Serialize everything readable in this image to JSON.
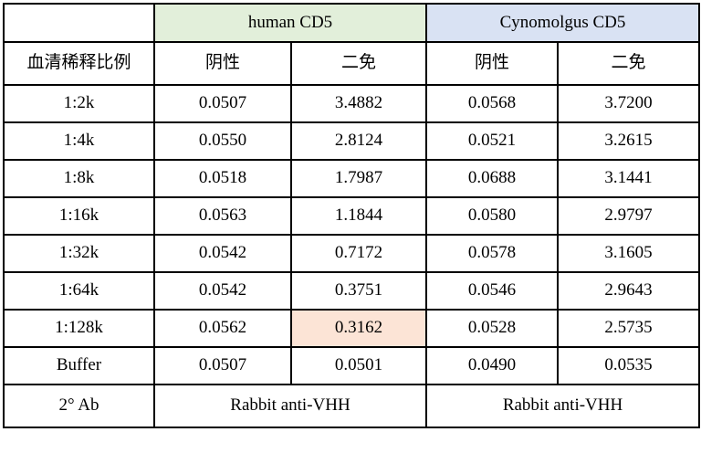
{
  "colors": {
    "human_group_bg": "#e2efda",
    "cyno_group_bg": "#d9e2f3",
    "highlight_bg": "#fce4d6"
  },
  "table": {
    "groups": [
      {
        "label": "human CD5"
      },
      {
        "label": "Cynomolgus CD5"
      }
    ],
    "column_headers": {
      "dilution": "血清稀释比例",
      "human_negative": "阴性",
      "human_boost": "二免",
      "cyno_negative": "阴性",
      "cyno_boost": "二免"
    },
    "rows": [
      {
        "label": "1:2k",
        "values": [
          "0.0507",
          "3.4882",
          "0.0568",
          "3.7200"
        ]
      },
      {
        "label": "1:4k",
        "values": [
          "0.0550",
          "2.8124",
          "0.0521",
          "3.2615"
        ]
      },
      {
        "label": "1:8k",
        "values": [
          "0.0518",
          "1.7987",
          "0.0688",
          "3.1441"
        ]
      },
      {
        "label": "1:16k",
        "values": [
          "0.0563",
          "1.1844",
          "0.0580",
          "2.9797"
        ]
      },
      {
        "label": "1:32k",
        "values": [
          "0.0542",
          "0.7172",
          "0.0578",
          "3.1605"
        ]
      },
      {
        "label": "1:64k",
        "values": [
          "0.0542",
          "0.3751",
          "0.0546",
          "2.9643"
        ]
      },
      {
        "label": "1:128k",
        "values": [
          "0.0562",
          "0.3162",
          "0.0528",
          "2.5735"
        ]
      },
      {
        "label": "Buffer",
        "values": [
          "0.0507",
          "0.0501",
          "0.0490",
          "0.0535"
        ]
      }
    ],
    "highlighted_cell": {
      "row_label": "1:128k",
      "column": "human_boost",
      "value": "0.3162"
    },
    "footer": {
      "label": "2° Ab",
      "human_value": "Rabbit anti-VHH",
      "cyno_value": "Rabbit anti-VHH"
    }
  }
}
